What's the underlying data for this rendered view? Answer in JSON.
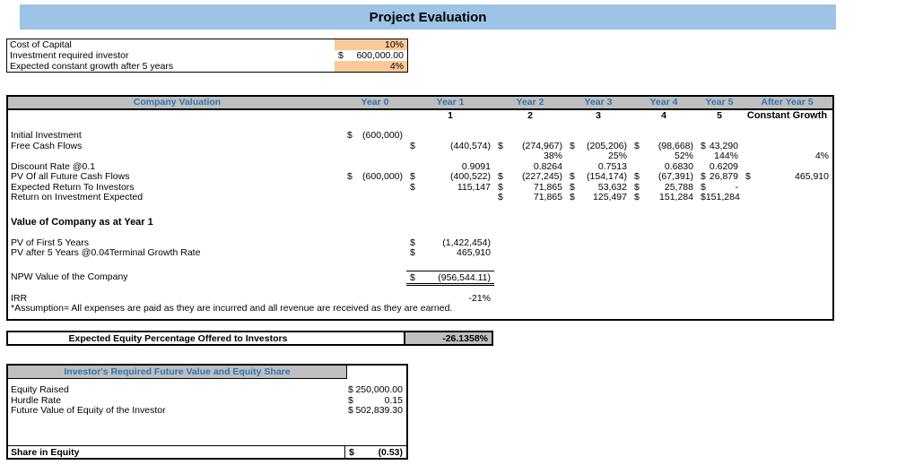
{
  "title": "Project Evaluation",
  "colors": {
    "title_bar": "#9DC3E6",
    "header_fill": "#BFBFBF",
    "header_text": "#2E75B6",
    "input_fill": "#FBC997"
  },
  "assumptions": {
    "rows": [
      {
        "label": "Cost of Capital",
        "v": "10%"
      },
      {
        "label": "Investment required investor",
        "d": "$",
        "v": "600,000.00"
      },
      {
        "label": "Expected constant growth after 5 years",
        "v": "4%"
      }
    ]
  },
  "valuation": {
    "title": "Company Valuation",
    "col_headers": [
      "Year 0",
      "Year 1",
      "Year 2",
      "Year 3",
      "Year 4",
      "Year 5",
      "After Year 5"
    ],
    "sub_headers": [
      "1",
      "2",
      "3",
      "4",
      "5",
      "Constant Growth"
    ],
    "rows": [
      {
        "label": "Initial Investment",
        "cells": [
          {
            "d": "$",
            "v": "(600,000)"
          },
          {},
          {},
          {},
          {},
          {},
          {}
        ]
      },
      {
        "label": "Free Cash Flows",
        "cells": [
          {},
          {
            "d": "$",
            "v": "(440,574)"
          },
          {
            "d": "$",
            "v": "(274,967)"
          },
          {
            "d": "$",
            "v": "(205,206)"
          },
          {
            "d": "$",
            "v": "(98,668)"
          },
          {
            "d": "$",
            "v": "43,290"
          },
          {}
        ]
      },
      {
        "label": "",
        "cells": [
          {},
          {},
          {
            "v": "38%"
          },
          {
            "v": "25%"
          },
          {
            "v": "52%"
          },
          {
            "v": "144%"
          },
          {
            "v": "4%"
          }
        ]
      },
      {
        "label": "Discount Rate @0.1",
        "cells": [
          {},
          {
            "v": "0.9091"
          },
          {
            "v": "0.8264"
          },
          {
            "v": "0.7513"
          },
          {
            "v": "0.6830"
          },
          {
            "v": "0.6209"
          },
          {}
        ]
      },
      {
        "label": "PV Of all Future Cash Flows",
        "cells": [
          {
            "d": "$",
            "v": "(600,000)"
          },
          {
            "d": "$",
            "v": "(400,522)"
          },
          {
            "d": "$",
            "v": "(227,245)"
          },
          {
            "d": "$",
            "v": "(154,174)"
          },
          {
            "d": "$",
            "v": "(67,391)"
          },
          {
            "d": "$",
            "v": "26,879"
          },
          {
            "d": "$",
            "v": "465,910"
          }
        ]
      },
      {
        "label": "Expected Return To Investors",
        "cells": [
          {},
          {
            "d": "$",
            "v": "115,147"
          },
          {
            "d": "$",
            "v": "71,865"
          },
          {
            "d": "$",
            "v": "53,632"
          },
          {
            "d": "$",
            "v": "25,788"
          },
          {
            "d": "$",
            "v": "-"
          },
          {}
        ]
      },
      {
        "label": "Return on Investment Expected",
        "cells": [
          {},
          {},
          {
            "d": "$",
            "v": "71,865"
          },
          {
            "d": "$",
            "v": "125,497"
          },
          {
            "d": "$",
            "v": "151,284"
          },
          {
            "d": "$",
            "v": "151,284"
          },
          {}
        ]
      }
    ],
    "section_heading": "Value of Company as at Year 1",
    "pv_rows": [
      {
        "label": "PV of First 5 Years",
        "d": "$",
        "v": "(1,422,454)"
      },
      {
        "label": "PV after 5 Years @0.04Terminal Growth Rate",
        "d": "$",
        "v": "465,910"
      }
    ],
    "npw": {
      "label": "NPW Value of the Company",
      "d": "$",
      "v": "(956,544.11)"
    },
    "irr": {
      "label": "IRR",
      "v": "-21%"
    },
    "note": "*Assumption= All expenses are paid as they are incurred and all revenue are received as they are earned."
  },
  "equity_banner": {
    "label": "Expected Equity Percentage Offered to Investors",
    "value": "-26.1358%"
  },
  "investor": {
    "title": "Investor's Required Future Value and Equity Share",
    "rows": [
      {
        "label": "Equity Raised",
        "d": "$",
        "v": "250,000.00"
      },
      {
        "label": "Hurdle Rate",
        "d": "$",
        "v": "0.15"
      },
      {
        "label": "Future Value of Equity of the Investor",
        "d": "$",
        "v": "502,839.30"
      }
    ],
    "total": {
      "label": "Share in Equity",
      "d": "$",
      "v": "(0.53)"
    }
  }
}
